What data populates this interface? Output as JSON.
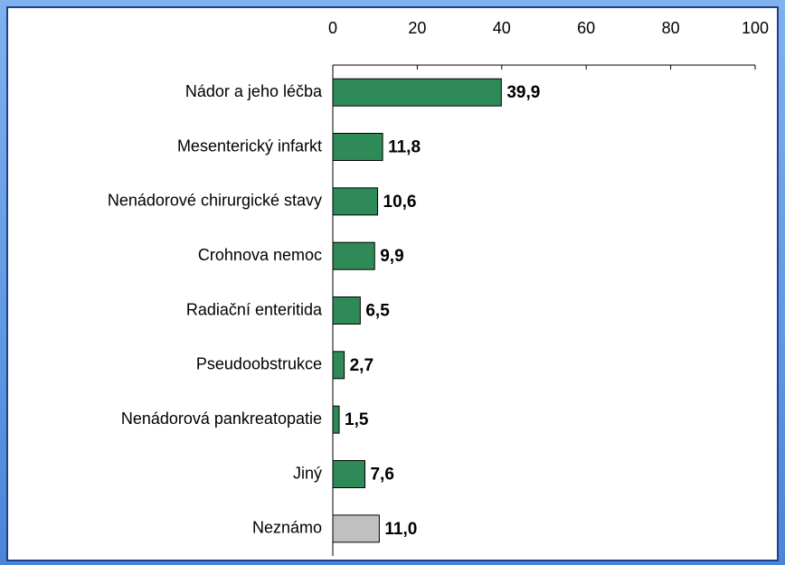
{
  "chart_data": {
    "type": "bar",
    "orientation": "horizontal",
    "categories": [
      "Nádor a jeho léčba",
      "Mesenterický infarkt",
      "Nenádorové chirurgické stavy",
      "Crohnova nemoc",
      "Radiační enteritida",
      "Pseudoobstrukce",
      "Nenádorová pankreatopatie",
      "Jiný",
      "Neznámo"
    ],
    "values": [
      39.9,
      11.8,
      10.6,
      9.9,
      6.5,
      2.7,
      1.5,
      7.6,
      11.0
    ],
    "value_labels": [
      "39,9",
      "11,8",
      "10,6",
      "9,9",
      "6,5",
      "2,7",
      "1,5",
      "7,6",
      "11,0"
    ],
    "colors": [
      "#2e8b57",
      "#2e8b57",
      "#2e8b57",
      "#2e8b57",
      "#2e8b57",
      "#2e8b57",
      "#2e8b57",
      "#2e8b57",
      "#c0c0c0"
    ],
    "xlim": [
      0,
      100
    ],
    "xticks": [
      0,
      20,
      40,
      60,
      80,
      100
    ],
    "grid": false
  }
}
